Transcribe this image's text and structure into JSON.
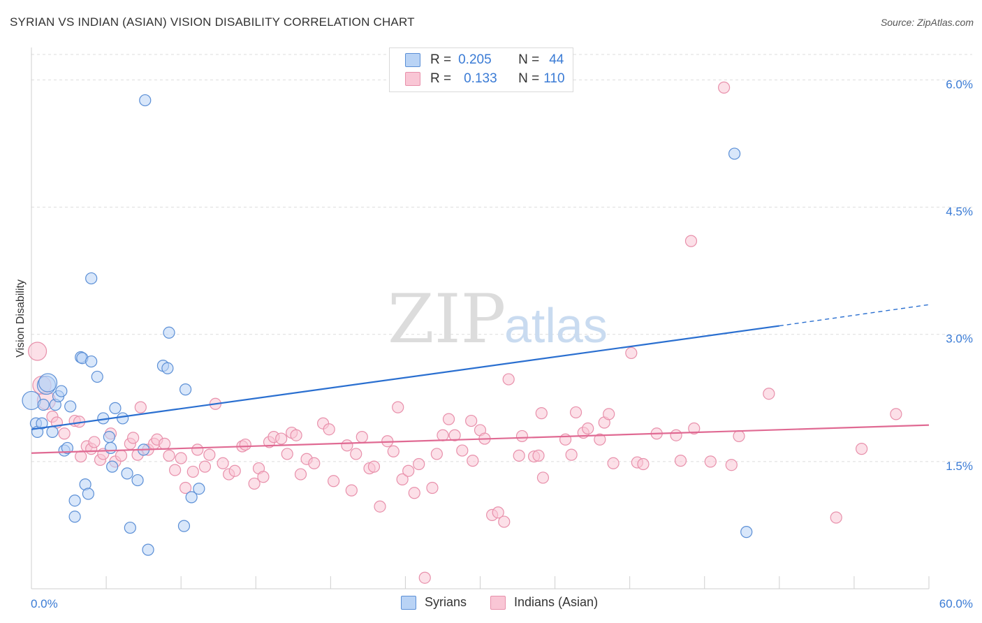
{
  "header": {
    "title": "SYRIAN VS INDIAN (ASIAN) VISION DISABILITY CORRELATION CHART",
    "source": "Source: ZipAtlas.com"
  },
  "legend": {
    "syrians": {
      "r_label": "R =",
      "r_value": "0.205",
      "n_label": "N =",
      "n_value": "44"
    },
    "indians": {
      "r_label": "R =",
      "r_value": "0.133",
      "n_label": "N =",
      "n_value": "110"
    }
  },
  "bottom_legend": {
    "syrians": "Syrians",
    "indians": "Indians (Asian)"
  },
  "colors": {
    "syrians_fill": "#b9d3f5",
    "syrians_stroke": "#5b8fd6",
    "syrians_line": "#2a6fd0",
    "indians_fill": "#f9c6d5",
    "indians_stroke": "#e890ab",
    "indians_line": "#e06a93",
    "tick_label": "#3a7bd5",
    "grid": "#dddddd"
  },
  "chart_data": {
    "type": "scatter",
    "title": "SYRIAN VS INDIAN (ASIAN) VISION DISABILITY CORRELATION CHART",
    "xlabel": "",
    "ylabel": "Vision Disability",
    "xlim": [
      0,
      60
    ],
    "ylim": [
      0,
      6.3
    ],
    "x_tick_labels": [
      "0.0%",
      "60.0%"
    ],
    "y_ticks": [
      1.5,
      3.0,
      4.5,
      6.0
    ],
    "y_tick_labels": [
      "1.5%",
      "3.0%",
      "4.5%",
      "6.0%"
    ],
    "grid": true,
    "legend_position": "top-center",
    "watermark": "ZIPatlas",
    "series": [
      {
        "name": "Syrians",
        "trend": {
          "x0": 0,
          "y0": 1.88,
          "x1": 50,
          "y1": 3.1,
          "dashed_to_x": 60,
          "dashed_to_y": 3.35
        },
        "points": [
          [
            0.0,
            2.22
          ],
          [
            0.3,
            1.95
          ],
          [
            0.4,
            1.85
          ],
          [
            0.7,
            1.95
          ],
          [
            0.8,
            2.17
          ],
          [
            1.0,
            2.4
          ],
          [
            1.1,
            2.43
          ],
          [
            1.4,
            1.85
          ],
          [
            1.6,
            2.17
          ],
          [
            1.8,
            2.27
          ],
          [
            2.0,
            2.33
          ],
          [
            2.2,
            1.63
          ],
          [
            2.4,
            1.66
          ],
          [
            2.6,
            2.15
          ],
          [
            2.9,
            0.85
          ],
          [
            2.9,
            1.04
          ],
          [
            3.3,
            2.73
          ],
          [
            3.4,
            2.72
          ],
          [
            3.6,
            1.23
          ],
          [
            3.8,
            1.12
          ],
          [
            4.0,
            2.68
          ],
          [
            4.0,
            3.66
          ],
          [
            4.4,
            2.5
          ],
          [
            4.8,
            2.01
          ],
          [
            5.2,
            1.79
          ],
          [
            5.3,
            1.66
          ],
          [
            5.4,
            1.44
          ],
          [
            5.6,
            2.13
          ],
          [
            6.1,
            2.01
          ],
          [
            6.4,
            1.36
          ],
          [
            6.6,
            0.72
          ],
          [
            7.1,
            1.28
          ],
          [
            7.5,
            1.64
          ],
          [
            7.6,
            5.76
          ],
          [
            7.8,
            0.46
          ],
          [
            8.8,
            2.63
          ],
          [
            9.1,
            2.6
          ],
          [
            9.2,
            3.02
          ],
          [
            10.2,
            0.74
          ],
          [
            10.3,
            2.35
          ],
          [
            10.7,
            1.08
          ],
          [
            11.2,
            1.18
          ],
          [
            47.0,
            5.13
          ],
          [
            47.8,
            0.67
          ]
        ]
      },
      {
        "name": "Indians (Asian)",
        "trend": {
          "x0": 0,
          "y0": 1.6,
          "x1": 60,
          "y1": 1.93
        },
        "points": [
          [
            0.4,
            2.8
          ],
          [
            0.7,
            2.4
          ],
          [
            1.0,
            2.22
          ],
          [
            1.4,
            2.03
          ],
          [
            1.7,
            1.96
          ],
          [
            2.2,
            1.83
          ],
          [
            2.9,
            1.98
          ],
          [
            3.2,
            1.97
          ],
          [
            3.3,
            1.56
          ],
          [
            3.7,
            1.68
          ],
          [
            4.0,
            1.65
          ],
          [
            4.2,
            1.73
          ],
          [
            4.6,
            1.52
          ],
          [
            4.8,
            1.59
          ],
          [
            5.3,
            1.83
          ],
          [
            5.6,
            1.5
          ],
          [
            6.0,
            1.57
          ],
          [
            6.6,
            1.71
          ],
          [
            6.8,
            1.78
          ],
          [
            7.1,
            1.58
          ],
          [
            7.3,
            2.14
          ],
          [
            7.8,
            1.64
          ],
          [
            8.2,
            1.71
          ],
          [
            8.4,
            1.76
          ],
          [
            8.9,
            1.71
          ],
          [
            9.2,
            1.57
          ],
          [
            9.6,
            1.4
          ],
          [
            10.0,
            1.54
          ],
          [
            10.3,
            1.19
          ],
          [
            10.8,
            1.38
          ],
          [
            11.1,
            1.64
          ],
          [
            11.6,
            1.44
          ],
          [
            11.9,
            1.58
          ],
          [
            12.3,
            2.18
          ],
          [
            12.8,
            1.48
          ],
          [
            13.2,
            1.35
          ],
          [
            13.6,
            1.39
          ],
          [
            14.1,
            1.68
          ],
          [
            14.3,
            1.7
          ],
          [
            14.9,
            1.24
          ],
          [
            15.2,
            1.42
          ],
          [
            15.5,
            1.32
          ],
          [
            15.9,
            1.73
          ],
          [
            16.2,
            1.79
          ],
          [
            16.7,
            1.77
          ],
          [
            17.1,
            1.59
          ],
          [
            17.4,
            1.84
          ],
          [
            17.7,
            1.81
          ],
          [
            18.0,
            1.35
          ],
          [
            18.4,
            1.53
          ],
          [
            18.9,
            1.48
          ],
          [
            19.5,
            1.95
          ],
          [
            19.9,
            1.88
          ],
          [
            20.2,
            1.27
          ],
          [
            21.1,
            1.69
          ],
          [
            21.4,
            1.16
          ],
          [
            21.7,
            1.59
          ],
          [
            22.1,
            1.79
          ],
          [
            22.6,
            1.42
          ],
          [
            22.9,
            1.44
          ],
          [
            23.3,
            0.97
          ],
          [
            23.8,
            1.74
          ],
          [
            24.2,
            1.62
          ],
          [
            24.5,
            2.14
          ],
          [
            24.8,
            1.29
          ],
          [
            25.2,
            1.39
          ],
          [
            25.6,
            1.13
          ],
          [
            25.9,
            1.47
          ],
          [
            26.3,
            0.13
          ],
          [
            26.8,
            1.19
          ],
          [
            27.1,
            1.59
          ],
          [
            27.5,
            1.81
          ],
          [
            27.9,
            2.0
          ],
          [
            28.3,
            1.81
          ],
          [
            28.8,
            1.63
          ],
          [
            29.4,
            1.98
          ],
          [
            29.5,
            1.51
          ],
          [
            30.0,
            1.87
          ],
          [
            30.3,
            1.77
          ],
          [
            30.8,
            0.87
          ],
          [
            31.2,
            0.9
          ],
          [
            31.6,
            0.79
          ],
          [
            31.9,
            2.47
          ],
          [
            32.6,
            1.57
          ],
          [
            32.8,
            1.8
          ],
          [
            33.6,
            1.56
          ],
          [
            33.9,
            1.57
          ],
          [
            34.1,
            2.07
          ],
          [
            34.2,
            1.31
          ],
          [
            35.7,
            1.76
          ],
          [
            36.1,
            1.58
          ],
          [
            36.4,
            2.08
          ],
          [
            36.9,
            1.84
          ],
          [
            37.2,
            1.89
          ],
          [
            38.0,
            1.76
          ],
          [
            38.3,
            1.96
          ],
          [
            38.6,
            2.06
          ],
          [
            38.9,
            1.48
          ],
          [
            40.1,
            2.78
          ],
          [
            40.5,
            1.49
          ],
          [
            40.9,
            1.47
          ],
          [
            41.8,
            1.83
          ],
          [
            43.1,
            1.81
          ],
          [
            43.4,
            1.51
          ],
          [
            44.1,
            4.1
          ],
          [
            44.3,
            1.89
          ],
          [
            45.4,
            1.5
          ],
          [
            46.3,
            5.91
          ],
          [
            46.8,
            1.46
          ],
          [
            47.3,
            1.8
          ],
          [
            49.3,
            2.3
          ],
          [
            53.8,
            0.84
          ],
          [
            55.5,
            1.65
          ],
          [
            57.8,
            2.06
          ]
        ]
      }
    ]
  }
}
